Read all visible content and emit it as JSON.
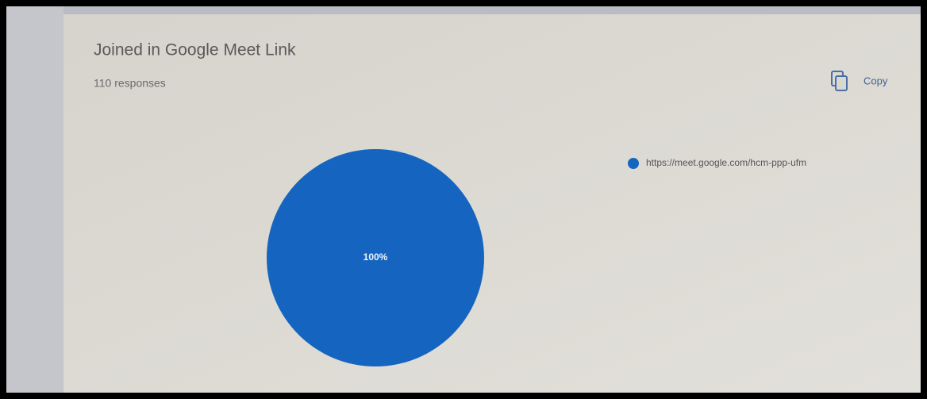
{
  "toolbar": {
    "copy": "Copy"
  },
  "chart_data": {
    "type": "pie",
    "title": "Joined in Google Meet Link",
    "subtitle": "110 responses",
    "categories": [
      "https://meet.google.com/hcm-ppp-ufm"
    ],
    "values": [
      100
    ],
    "value_labels": [
      "100%"
    ],
    "colors": [
      "#1565c0"
    ],
    "legend": "right"
  }
}
